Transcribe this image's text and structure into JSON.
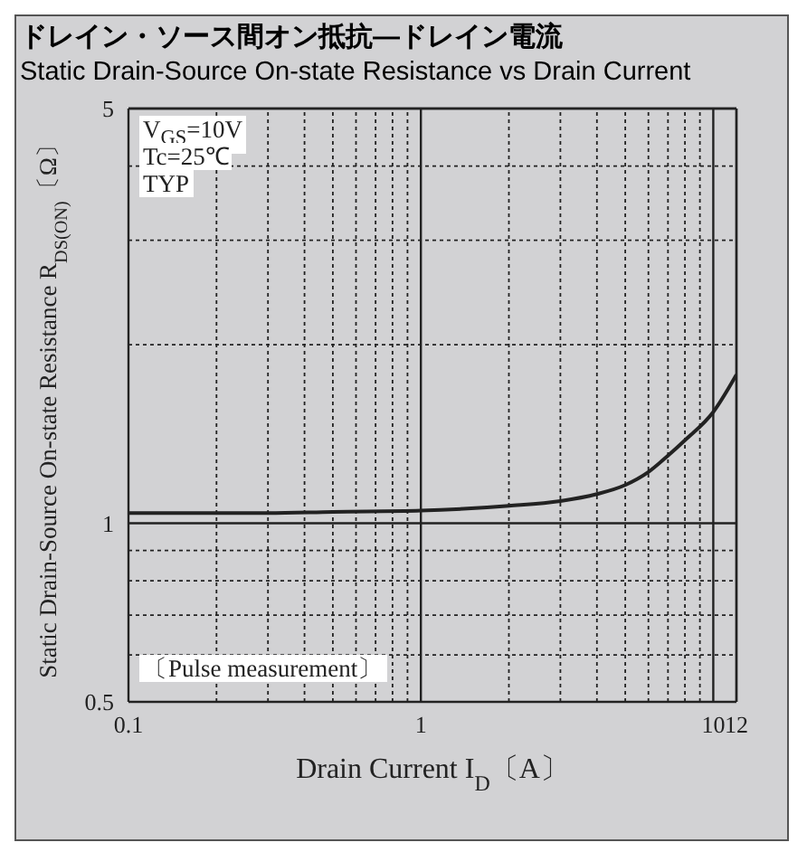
{
  "chart_data": {
    "type": "line",
    "title": "ドレイン・ソース間オン抵抗―ドレイン電流",
    "subtitle": "Static Drain-Source On-state Resistance vs Drain Current",
    "xlabel": "Drain Current  I$_{D}$〔A〕",
    "ylabel": "Static Drain-Source On-state Resistance  R$_{DS(ON)}$〔Ω〕",
    "annotations": [
      "V$_{GS}$=10V",
      "Tc=25℃",
      "TYP",
      "〔Pulse measurement〕"
    ],
    "log": "xy",
    "grid": true,
    "marker": "none",
    "line_style": "solid",
    "xlim": [
      0.1,
      12
    ],
    "ylim": [
      0.5,
      5
    ],
    "xticks": [
      0.1,
      {
        "value": 0.2,
        "label": null
      },
      {
        "value": 0.3,
        "label": null
      },
      {
        "value": 0.4,
        "label": null
      },
      {
        "value": 0.5,
        "label": null
      },
      {
        "value": 0.6,
        "label": null
      },
      {
        "value": 0.7,
        "label": null
      },
      {
        "value": 0.8,
        "label": null
      },
      {
        "value": 0.9,
        "label": null
      },
      1,
      {
        "value": 2,
        "label": null
      },
      {
        "value": 3,
        "label": null
      },
      {
        "value": 4,
        "label": null
      },
      {
        "value": 5,
        "label": null
      },
      {
        "value": 6,
        "label": null
      },
      {
        "value": 7,
        "label": null
      },
      {
        "value": 8,
        "label": null
      },
      {
        "value": 9,
        "label": null
      },
      10,
      12
    ],
    "yticks": [
      0.5,
      {
        "value": 0.6,
        "label": null
      },
      {
        "value": 0.7,
        "label": null
      },
      {
        "value": 0.8,
        "label": null
      },
      {
        "value": 0.9,
        "label": null
      },
      1,
      {
        "value": 2,
        "label": null
      },
      {
        "value": 3,
        "label": null
      },
      {
        "value": 4,
        "label": null
      },
      5
    ],
    "x": [
      0.1,
      0.3,
      0.5,
      1,
      2,
      3,
      4,
      5,
      6,
      7,
      8,
      10,
      12
    ],
    "series": [
      {
        "color": "#222222",
        "values": [
          1.04,
          1.04,
          1.045,
          1.05,
          1.07,
          1.09,
          1.12,
          1.16,
          1.22,
          1.3,
          1.38,
          1.54,
          1.78
        ]
      }
    ]
  }
}
